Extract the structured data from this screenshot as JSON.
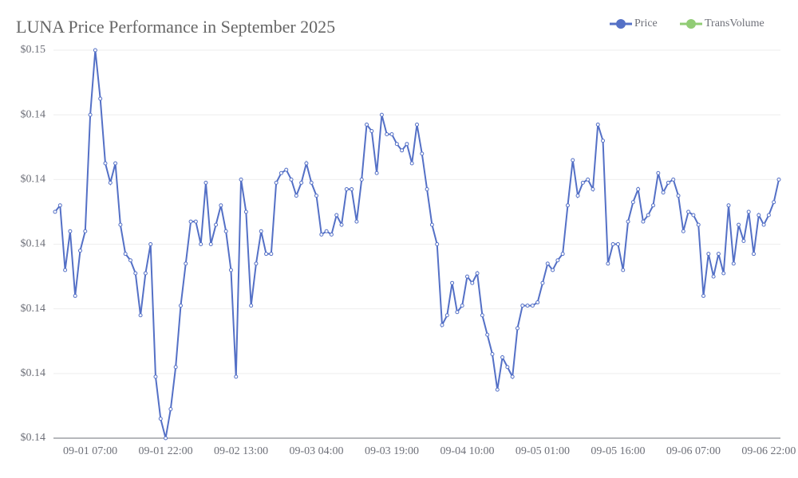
{
  "chart_data": {
    "type": "line",
    "title": "LUNA Price Performance in September 2025",
    "categories": [
      null,
      null,
      null,
      null,
      null,
      null,
      null,
      "09-01 07:00",
      null,
      null,
      null,
      null,
      null,
      null,
      null,
      null,
      null,
      null,
      null,
      null,
      null,
      null,
      "09-01 22:00",
      null,
      null,
      null,
      null,
      null,
      null,
      null,
      null,
      null,
      null,
      null,
      null,
      null,
      null,
      "09-02 13:00",
      null,
      null,
      null,
      null,
      null,
      null,
      null,
      null,
      null,
      null,
      null,
      null,
      null,
      null,
      "09-03 04:00",
      null,
      null,
      null,
      null,
      null,
      null,
      null,
      null,
      null,
      null,
      null,
      null,
      null,
      null,
      "09-03 19:00",
      null,
      null,
      null,
      null,
      null,
      null,
      null,
      null,
      null,
      null,
      null,
      null,
      null,
      null,
      "09-04 10:00",
      null,
      null,
      null,
      null,
      null,
      null,
      null,
      null,
      null,
      null,
      null,
      null,
      null,
      null,
      "09-05 01:00",
      null,
      null,
      null,
      null,
      null,
      null,
      null,
      null,
      null,
      null,
      null,
      null,
      null,
      null,
      "09-05 16:00",
      null,
      null,
      null,
      null,
      null,
      null,
      null,
      null,
      null,
      null,
      null,
      null,
      null,
      null,
      "09-06 07:00",
      null,
      null,
      null,
      null,
      null,
      null,
      null,
      null,
      null,
      null,
      null,
      null,
      null,
      null,
      "09-06 22:00",
      null,
      null
    ],
    "series": [
      {
        "name": "Price",
        "color": "#5470c6",
        "values": [
          0.1445,
          0.14452,
          0.14432,
          0.14444,
          0.14424,
          0.14438,
          0.14444,
          0.1448,
          0.145,
          0.14485,
          0.14465,
          0.14459,
          0.14465,
          0.14446,
          0.14437,
          0.14435,
          0.14431,
          0.14418,
          0.14431,
          0.1444,
          0.14399,
          0.14386,
          0.1438,
          0.14389,
          0.14402,
          0.14421,
          0.14434,
          0.14447,
          0.14447,
          0.1444,
          0.14459,
          0.1444,
          0.14446,
          0.14452,
          0.14444,
          0.14432,
          0.14399,
          0.1446,
          0.1445,
          0.14421,
          0.14434,
          0.14444,
          0.14437,
          0.14437,
          0.14459,
          0.14462,
          0.14463,
          0.1446,
          0.14455,
          0.14459,
          0.14465,
          0.14459,
          0.14455,
          0.14443,
          0.14444,
          0.14443,
          0.14449,
          0.14446,
          0.14457,
          0.14457,
          0.14447,
          0.1446,
          0.14477,
          0.14475,
          0.14462,
          0.1448,
          0.14474,
          0.14474,
          0.14471,
          0.14469,
          0.14471,
          0.14465,
          0.14477,
          0.14468,
          0.14457,
          0.14446,
          0.1444,
          0.14415,
          0.14418,
          0.14428,
          0.14419,
          0.14421,
          0.1443,
          0.14428,
          0.14431,
          0.14418,
          0.14412,
          0.14406,
          0.14395,
          0.14405,
          0.14402,
          0.14399,
          0.14414,
          0.14421,
          0.14421,
          0.14421,
          0.14422,
          0.14428,
          0.14434,
          0.14432,
          0.14435,
          0.14437,
          0.14452,
          0.14466,
          0.14455,
          0.14459,
          0.1446,
          0.14457,
          0.14477,
          0.14472,
          0.14434,
          0.1444,
          0.1444,
          0.14432,
          0.14447,
          0.14453,
          0.14457,
          0.14447,
          0.14449,
          0.14452,
          0.14462,
          0.14456,
          0.14459,
          0.1446,
          0.14455,
          0.14444,
          0.1445,
          0.14449,
          0.14446,
          0.14424,
          0.14437,
          0.1443,
          0.14437,
          0.14431,
          0.14452,
          0.14434,
          0.14446,
          0.14441,
          0.1445,
          0.14437,
          0.14449,
          0.14446,
          0.14449,
          0.14453,
          0.1446
        ]
      },
      {
        "name": "TransVolume",
        "color": "#91cc75"
      }
    ],
    "ylim": [
      0.1438,
      0.145
    ],
    "yticks": [
      {
        "value": 0.1438,
        "label": "$0.14"
      },
      {
        "value": 0.144,
        "label": "$0.14"
      },
      {
        "value": 0.1442,
        "label": "$0.14"
      },
      {
        "value": 0.1444,
        "label": "$0.14"
      },
      {
        "value": 0.1446,
        "label": "$0.14"
      },
      {
        "value": 0.1448,
        "label": "$0.14"
      },
      {
        "value": 0.145,
        "label": "$0.15"
      }
    ],
    "grid": true,
    "legend": "top-right"
  }
}
